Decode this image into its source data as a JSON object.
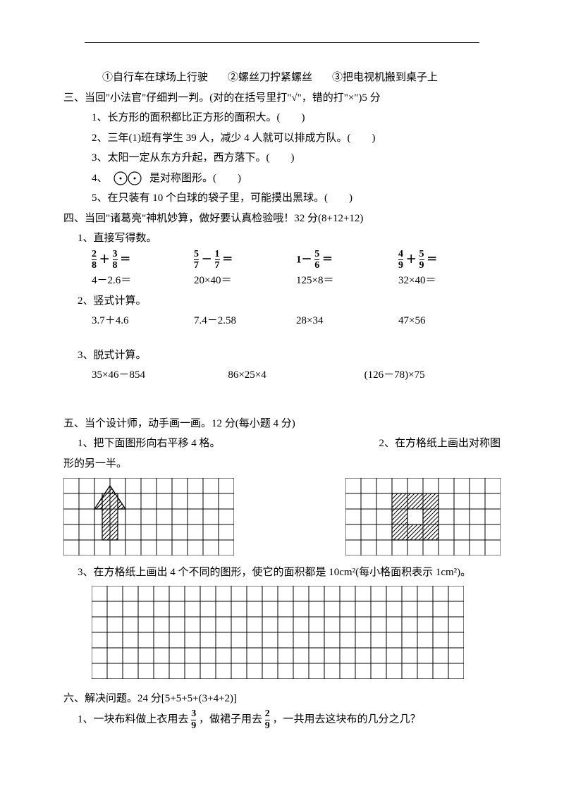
{
  "topline_items": {
    "a": "①自行车在球场上行驶",
    "b": "②螺丝刀拧紧螺丝",
    "c": "③把电视机搬到桌子上"
  },
  "s3": {
    "title": "三、当回\"小法官\"仔细判一判。(对的在括号里打\"√\"，错的打\"×\")5 分",
    "q1": "1、长方形的面积都比正方形的面积大。(　　)",
    "q2": "2、三年(1)班有学生 39 人，减少 4 人就可以排成方队。(　　)",
    "q3": "3、太阳一定从东方升起，西方落下。(　　)",
    "q4a": "4、",
    "q4b": "是对称图形。(　　)",
    "q5": "5、在只装有 10 个白球的袋子里，可能摸出黑球。(　　)"
  },
  "s4": {
    "title": "四、当回\"诸葛亮\"神机妙算，做好要认真检验哦！32 分(8+12+12)",
    "h1": "1、直接写得数。",
    "r1": {
      "a": {
        "n1": "2",
        "d1": "8",
        "op": "＋",
        "n2": "3",
        "d2": "8",
        "eq": "＝"
      },
      "b": {
        "n1": "5",
        "d1": "7",
        "op": "－",
        "n2": "1",
        "d2": "7",
        "eq": "＝"
      },
      "c": {
        "pre": "1－",
        "n": "5",
        "d": "6",
        "eq": "＝"
      },
      "d": {
        "n1": "4",
        "d1": "9",
        "op": "＋",
        "n2": "5",
        "d2": "9",
        "eq": "＝"
      }
    },
    "r2": {
      "a": "4－2.6＝",
      "b": "20×40＝",
      "c": "125×8＝",
      "d": "32×40＝"
    },
    "h2": "2、竖式计算。",
    "r3": {
      "a": "3.7＋4.6",
      "b": "7.4－2.58",
      "c": "28×34",
      "d": "47×56"
    },
    "h3": "3、脱式计算。",
    "r4": {
      "a": "35×46－854",
      "b": "86×25×4",
      "c": "(126－78)×75"
    }
  },
  "s5": {
    "title": "五、当个设计师，动手画一画。12 分(每小题 4 分)",
    "q1a": "1、把下面图形向右平移 4 格。",
    "q1b": "2、在方格纸上画出对称图",
    "q1c": "形的另一半。",
    "q3": "3、在方格纸上画出 4 个不同的图形，使它的面积都是 10cm²(每小格面积表示 1cm²)。"
  },
  "s6": {
    "title": "六、解决问题。24 分[5+5+5+(3+4+2)]",
    "q1a": "1、一块布料做上衣用去",
    "q1f1": {
      "n": "3",
      "d": "9"
    },
    "q1b": "，做裙子用去",
    "q1f2": {
      "n": "2",
      "d": "9"
    },
    "q1c": "，一共用去这块布的几分之几？"
  },
  "grid1": {
    "cols": 11,
    "rows": 5,
    "cell": 22
  },
  "grid2": {
    "cols": 10,
    "rows": 5,
    "cell": 22
  },
  "grid3": {
    "cols": 24,
    "rows": 6,
    "cell": 22
  },
  "colors": {
    "stroke": "#000000",
    "hatch": "#000000"
  }
}
